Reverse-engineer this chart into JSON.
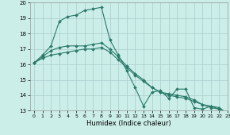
{
  "xlabel": "Humidex (Indice chaleur)",
  "background_color": "#cceee8",
  "grid_color": "#aacccc",
  "line_color": "#2a7a6a",
  "xlim": [
    -0.5,
    23
  ],
  "ylim": [
    13,
    20
  ],
  "xticks": [
    0,
    1,
    2,
    3,
    4,
    5,
    6,
    7,
    8,
    9,
    10,
    11,
    12,
    13,
    14,
    15,
    16,
    17,
    18,
    19,
    20,
    21,
    22,
    23
  ],
  "yticks": [
    13,
    14,
    15,
    16,
    17,
    18,
    19,
    20
  ],
  "series": [
    {
      "x": [
        0,
        1,
        2,
        3,
        4,
        5,
        6,
        7,
        8,
        9,
        10,
        11,
        12,
        13,
        14,
        15,
        16,
        17,
        18,
        19,
        20,
        21,
        22,
        23
      ],
      "y": [
        16.1,
        16.6,
        17.2,
        18.8,
        19.1,
        19.2,
        19.5,
        19.6,
        19.7,
        17.6,
        16.6,
        15.6,
        14.5,
        13.3,
        14.2,
        14.3,
        13.8,
        14.4,
        14.4,
        13.2,
        13.1,
        13.3,
        13.2,
        12.8
      ]
    },
    {
      "x": [
        0,
        1,
        2,
        3,
        4,
        5,
        6,
        7,
        8,
        9,
        10,
        11,
        12,
        13,
        14,
        15,
        16,
        17,
        18,
        19,
        20,
        21,
        22,
        23
      ],
      "y": [
        16.1,
        16.5,
        16.9,
        17.1,
        17.2,
        17.2,
        17.2,
        17.3,
        17.4,
        17.0,
        16.5,
        15.9,
        15.4,
        15.0,
        14.5,
        14.2,
        14.1,
        14.0,
        13.9,
        13.7,
        13.4,
        13.3,
        13.1,
        12.8
      ]
    },
    {
      "x": [
        0,
        1,
        2,
        3,
        4,
        5,
        6,
        7,
        8,
        9,
        10,
        11,
        12,
        13,
        14,
        15,
        16,
        17,
        18,
        19,
        20,
        21,
        22,
        23
      ],
      "y": [
        16.1,
        16.4,
        16.6,
        16.7,
        16.8,
        16.9,
        17.0,
        17.0,
        17.1,
        16.8,
        16.3,
        15.8,
        15.3,
        14.9,
        14.5,
        14.2,
        14.0,
        13.9,
        13.8,
        13.6,
        13.4,
        13.2,
        13.1,
        12.8
      ]
    }
  ]
}
